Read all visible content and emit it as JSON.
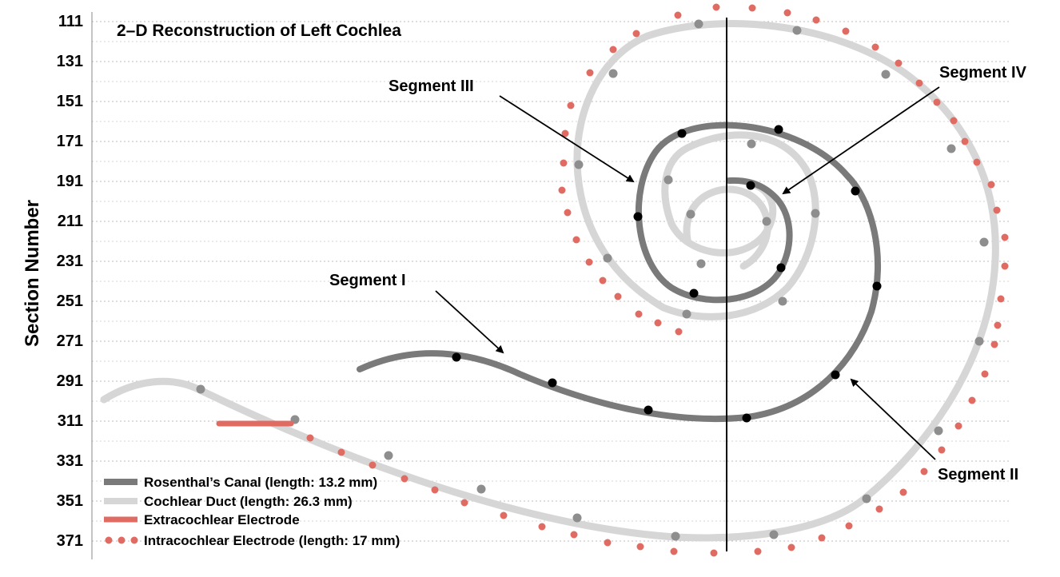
{
  "title": "2–D Reconstruction of  Left Cochlea",
  "y_axis": {
    "label": "Section Number",
    "ticks": [
      "111",
      "131",
      "151",
      "171",
      "191",
      "211",
      "231",
      "251",
      "271",
      "291",
      "311",
      "331",
      "351",
      "371"
    ]
  },
  "segments": [
    {
      "label": "Segment III"
    },
    {
      "label": "Segment IV"
    },
    {
      "label": "Segment I"
    },
    {
      "label": "Segment II"
    }
  ],
  "legend": [
    {
      "label": "Rosenthal’s Canal (length: 13.2 mm)",
      "symbol": "line",
      "color": "#7a7a7a"
    },
    {
      "label": "Cochlear Duct (length: 26.3 mm)",
      "symbol": "line",
      "color": "#d6d6d6"
    },
    {
      "label": "Extracochlear Electrode",
      "symbol": "line",
      "color": "#e06b62"
    },
    {
      "label": "Intracochlear Electrode (length: 17 mm)",
      "symbol": "dots",
      "color": "#e06b62"
    }
  ],
  "colors": {
    "rosenthal": "#7a7a7a",
    "duct": "#d6d6d6",
    "electrode": "#e06b62",
    "marker_dark": "#000000",
    "marker_light": "#8e8e8e"
  }
}
